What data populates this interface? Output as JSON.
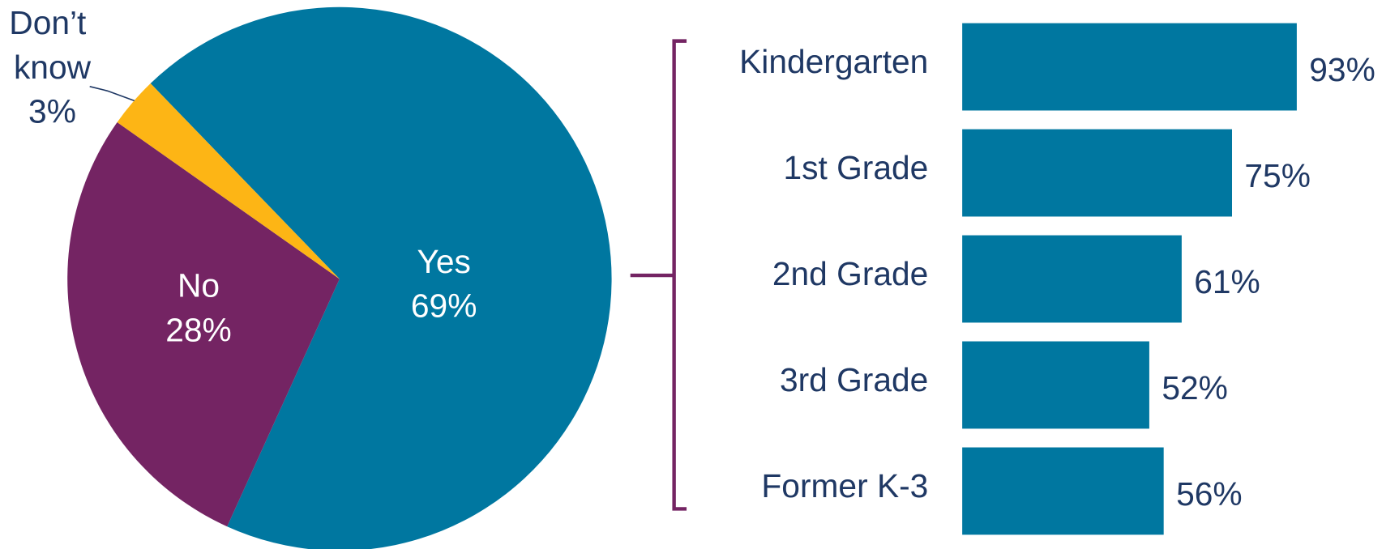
{
  "chart_data": [
    {
      "type": "pie",
      "categories": [
        "Yes",
        "No",
        "Don’t know"
      ],
      "values": [
        69,
        28,
        3
      ],
      "value_labels": [
        "69%",
        "28%",
        "3%"
      ],
      "colors": [
        "#0077a0",
        "#742463",
        "#fdb515"
      ]
    },
    {
      "type": "bar",
      "orientation": "horizontal",
      "categories": [
        "Kindergarten",
        "1st Grade",
        "2nd Grade",
        "3rd Grade",
        "Former K-3"
      ],
      "values": [
        93,
        75,
        61,
        52,
        56
      ],
      "value_labels": [
        "93%",
        "75%",
        "61%",
        "52%",
        "56%"
      ],
      "color": "#0077a0"
    }
  ]
}
